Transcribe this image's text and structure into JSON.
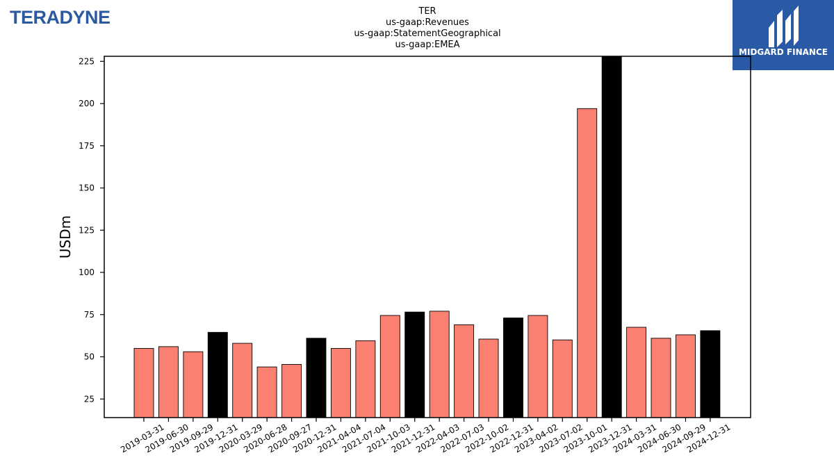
{
  "brand_left": "TERADYNE",
  "brand_right": "MIDGARD FINANCE",
  "brand_colors": {
    "left_logo": "#2c5aa0",
    "right_badge": "#2a5aa6"
  },
  "chart_data": {
    "type": "bar",
    "title_lines": [
      "TER",
      "us-gaap:Revenues",
      "us-gaap:StatementGeographical",
      "us-gaap:EMEA"
    ],
    "xlabel": "",
    "ylabel": "USDm",
    "ylim": [
      14,
      228
    ],
    "yticks": [
      25,
      50,
      75,
      100,
      125,
      150,
      175,
      200,
      225
    ],
    "grid": false,
    "colors": {
      "quarter": "#fa8072",
      "year_end": "#000000"
    },
    "categories": [
      "2019-03-31",
      "2019-06-30",
      "2019-09-29",
      "2019-12-31",
      "2020-03-29",
      "2020-06-28",
      "2020-09-27",
      "2020-12-31",
      "2021-04-04",
      "2021-07-04",
      "2021-10-03",
      "2021-12-31",
      "2022-04-03",
      "2022-07-03",
      "2022-10-02",
      "2022-12-31",
      "2023-04-02",
      "2023-07-02",
      "2023-10-01",
      "2023-12-31",
      "2024-03-31",
      "2024-06-30",
      "2024-09-29",
      "2024-12-31"
    ],
    "values": [
      55,
      56,
      53,
      64.5,
      58,
      44,
      45.5,
      61,
      55,
      59.5,
      74.5,
      76.5,
      77,
      69,
      60.5,
      73,
      74.5,
      60,
      197,
      230,
      67.5,
      61,
      63,
      65.5
    ],
    "year_end": [
      false,
      false,
      false,
      true,
      false,
      false,
      false,
      true,
      false,
      false,
      false,
      true,
      false,
      false,
      false,
      true,
      false,
      false,
      false,
      true,
      false,
      false,
      false,
      true
    ]
  }
}
